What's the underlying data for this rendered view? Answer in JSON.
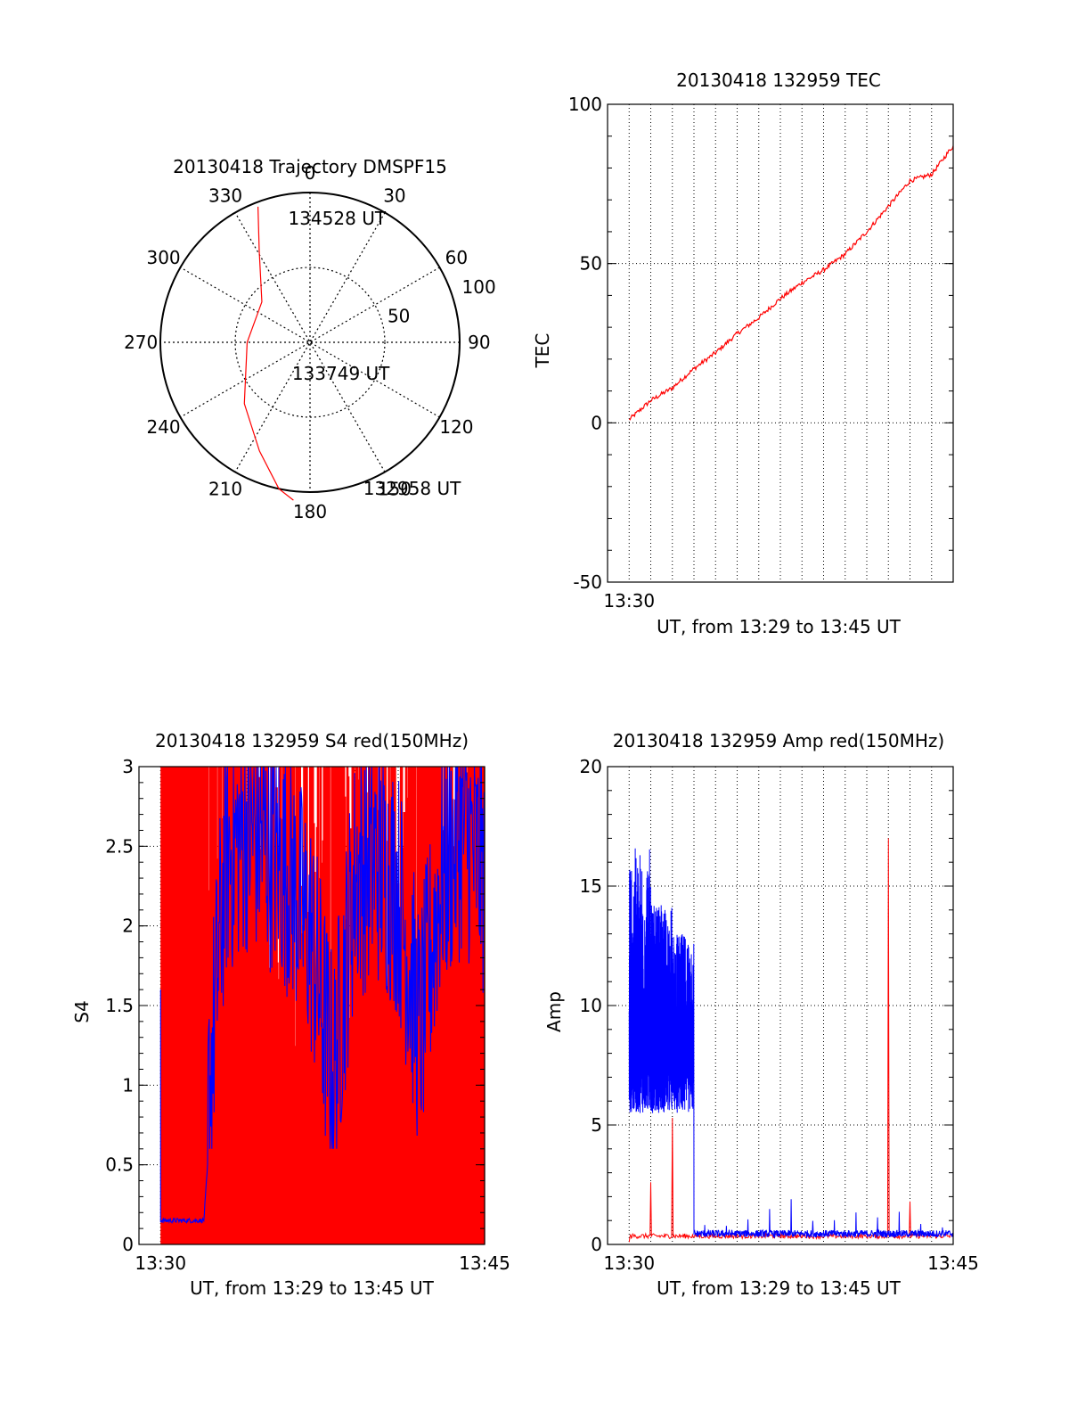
{
  "colors": {
    "red": "#ff0000",
    "blue": "#0000ff",
    "axis": "#000000"
  },
  "chart_data": [
    {
      "type": "polar",
      "title": "20130418 Trajectory DMSPF15",
      "azimuth_labels": [
        "0",
        "30",
        "60",
        "90",
        "120",
        "150",
        "180",
        "210",
        "240",
        "270",
        "300",
        "330"
      ],
      "radial_labels": [
        "50",
        "100"
      ],
      "rlim": [
        0,
        100
      ],
      "trajectory": {
        "color": "red",
        "points": [
          [
            339,
            97
          ],
          [
            331,
            70
          ],
          [
            310,
            42
          ],
          [
            270,
            42
          ],
          [
            227,
            60
          ],
          [
            205,
            80
          ],
          [
            192,
            100
          ],
          [
            186,
            106
          ]
        ]
      },
      "annotations": [
        {
          "text": "134528 UT",
          "az": 350,
          "r": 84
        },
        {
          "text": "133749 UT",
          "az": 210,
          "r": 24
        },
        {
          "text": "132958 UT",
          "az": 160,
          "r": 104
        }
      ],
      "grid": true
    },
    {
      "type": "line",
      "title": "20130418 132959 TEC",
      "xlabel": "UT, from 13:29 to 13:45 UT",
      "ylabel": "TEC",
      "xlim": [
        "13:29",
        "13:45"
      ],
      "ylim": [
        -50,
        100
      ],
      "yticks": [
        "-50",
        "0",
        "50",
        "100"
      ],
      "xtick_labels": [
        "13:30"
      ],
      "grid": true,
      "series": [
        {
          "color": "red",
          "x": [
            "13:30",
            "13:31",
            "13:32",
            "13:33",
            "13:34",
            "13:35",
            "13:36",
            "13:37",
            "13:38",
            "13:39",
            "13:40",
            "13:41",
            "13:42",
            "13:43",
            "13:44",
            "13:45"
          ],
          "values": [
            1,
            7,
            11,
            17,
            22,
            28,
            33,
            39,
            44,
            48,
            53,
            60,
            68,
            76,
            78,
            87
          ]
        }
      ]
    },
    {
      "type": "line",
      "title": "20130418 132959 S4 red(150MHz)",
      "xlabel": "UT, from 13:29 to 13:45 UT",
      "ylabel": "S4",
      "xlim": [
        "13:29",
        "13:45"
      ],
      "ylim": [
        0,
        3
      ],
      "yticks": [
        "0",
        "0.5",
        "1",
        "1.5",
        "2",
        "2.5",
        "3"
      ],
      "xtick_labels": [
        "13:30",
        "13:45"
      ],
      "grid": true,
      "series": [
        {
          "color": "red",
          "description_of_signal": "dense spikes between 0 and the top of the axis",
          "x": [
            "13:30",
            "13:31",
            "13:32",
            "13:33",
            "13:34",
            "13:35",
            "13:36",
            "13:37",
            "13:38",
            "13:39",
            "13:40",
            "13:41",
            "13:42",
            "13:43",
            "13:44",
            "13:45"
          ],
          "values": [
            3,
            3,
            3,
            1.7,
            1.6,
            1.8,
            1.5,
            1.6,
            1.4,
            1.7,
            1.7,
            1.8,
            1.6,
            1.7,
            1.8,
            1.8
          ]
        },
        {
          "color": "blue",
          "x": [
            "13:30",
            "13:31",
            "13:32",
            "13:33",
            "13:34",
            "13:35",
            "13:36",
            "13:37",
            "13:38",
            "13:39",
            "13:40",
            "13:41",
            "13:42",
            "13:43",
            "13:44",
            "13:45"
          ],
          "values": [
            0.15,
            0.15,
            0.15,
            2.1,
            2.3,
            2.2,
            2.0,
            1.6,
            0.7,
            2.0,
            2.1,
            1.9,
            1.0,
            2.0,
            2.3,
            2.0
          ]
        }
      ]
    },
    {
      "type": "line",
      "title": "20130418 132959 Amp red(150MHz)",
      "xlabel": "UT, from 13:29 to 13:45 UT",
      "ylabel": "Amp",
      "xlim": [
        "13:29",
        "13:45"
      ],
      "ylim": [
        0,
        20
      ],
      "yticks": [
        "0",
        "5",
        "10",
        "15",
        "20"
      ],
      "xtick_labels": [
        "13:30",
        "13:45"
      ],
      "grid": true,
      "series": [
        {
          "color": "red",
          "x": [
            "13:30",
            "13:31",
            "13:32",
            "13:33",
            "13:34",
            "13:35",
            "13:36",
            "13:37",
            "13:38",
            "13:39",
            "13:40",
            "13:41",
            "13:42",
            "13:43",
            "13:44",
            "13:45"
          ],
          "values": [
            0.1,
            2.6,
            5.3,
            0.3,
            0.3,
            0.4,
            0.3,
            0.5,
            0.3,
            0.3,
            0.3,
            0.3,
            17.0,
            1.8,
            0.4,
            0.4
          ]
        },
        {
          "color": "blue",
          "x": [
            "13:30",
            "13:31",
            "13:32",
            "13:33",
            "13:34",
            "13:35",
            "13:36",
            "13:37",
            "13:38",
            "13:39",
            "13:40",
            "13:41",
            "13:42",
            "13:43",
            "13:44",
            "13:45"
          ],
          "values": [
            15.6,
            13.2,
            12.0,
            0.4,
            0.4,
            0.7,
            0.9,
            1.4,
            0.6,
            0.6,
            0.8,
            0.6,
            1.0,
            0.4,
            0.4,
            0.4
          ]
        }
      ]
    }
  ]
}
